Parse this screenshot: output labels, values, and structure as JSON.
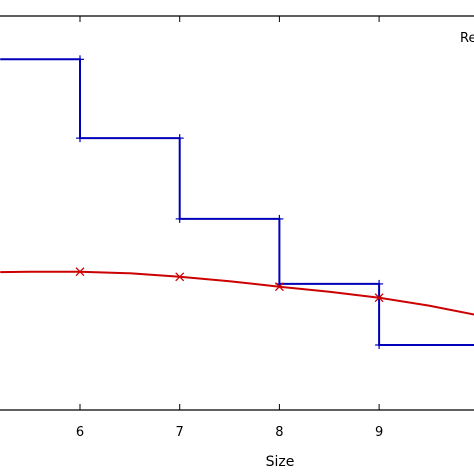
{
  "chart_data": {
    "type": "line",
    "xlabel": "Size",
    "ylabel": "",
    "xlim": [
      5.2,
      10.0
    ],
    "ylim": [
      0,
      1
    ],
    "xticks": [
      6,
      7,
      8,
      9
    ],
    "legend_placement": "top-right",
    "legend_entries": [
      "Re"
    ],
    "grid": false,
    "series": [
      {
        "style": "step",
        "color": "#0000bb",
        "marker": "+",
        "points": [
          {
            "x": 5.2,
            "y": 0.89
          },
          {
            "x": 6,
            "y": 0.89
          },
          {
            "x": 6,
            "y": 0.69
          },
          {
            "x": 7,
            "y": 0.69
          },
          {
            "x": 7,
            "y": 0.485
          },
          {
            "x": 8,
            "y": 0.485
          },
          {
            "x": 8,
            "y": 0.32
          },
          {
            "x": 9,
            "y": 0.32
          },
          {
            "x": 9,
            "y": 0.165
          },
          {
            "x": 10.0,
            "y": 0.165
          }
        ]
      },
      {
        "style": "line",
        "color": "#cc0000",
        "marker": "x",
        "markers_x": [
          6,
          7,
          8,
          9
        ],
        "points": [
          {
            "x": 5.2,
            "y": 0.35
          },
          {
            "x": 5.5,
            "y": 0.351
          },
          {
            "x": 6,
            "y": 0.351
          },
          {
            "x": 6.5,
            "y": 0.347
          },
          {
            "x": 7,
            "y": 0.338
          },
          {
            "x": 7.5,
            "y": 0.327
          },
          {
            "x": 8,
            "y": 0.313
          },
          {
            "x": 8.5,
            "y": 0.3
          },
          {
            "x": 9,
            "y": 0.285
          },
          {
            "x": 9.5,
            "y": 0.265
          },
          {
            "x": 10.0,
            "y": 0.24
          }
        ]
      }
    ]
  }
}
